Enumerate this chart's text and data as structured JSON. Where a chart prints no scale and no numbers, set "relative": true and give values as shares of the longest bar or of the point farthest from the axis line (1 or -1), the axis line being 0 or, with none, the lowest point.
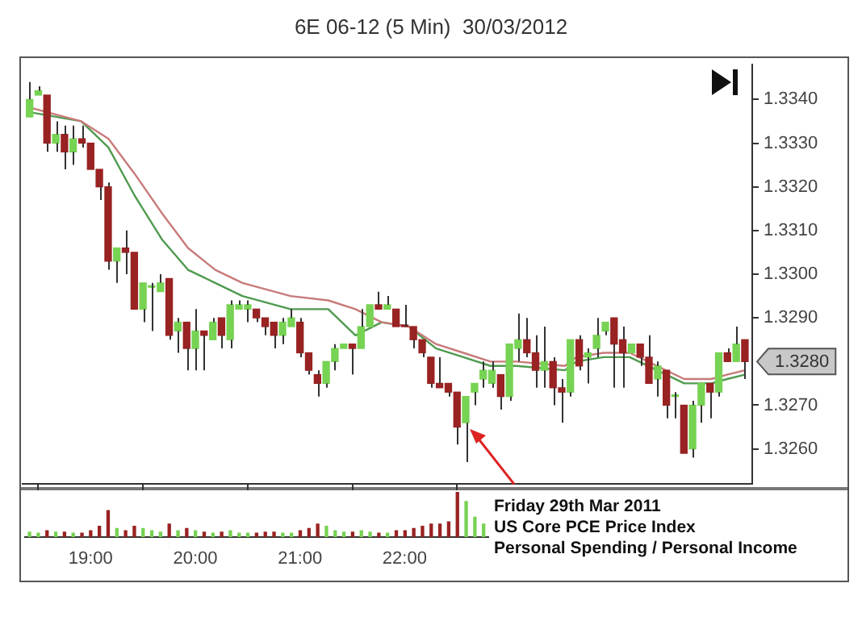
{
  "chart_data": [
    {
      "type": "candlestick",
      "title": "6E 06-12 (5 Min)  30/03/2012",
      "xticks": [
        {
          "value": 19,
          "label": "19:00"
        },
        {
          "value": 20,
          "label": "20:00"
        },
        {
          "value": 21,
          "label": "21:00"
        },
        {
          "value": 22,
          "label": "22:00"
        }
      ],
      "x": [
        18.417,
        18.5,
        18.583,
        18.667,
        18.75,
        18.833,
        18.917,
        19,
        19.083,
        19.167,
        19.25,
        19.333,
        19.417,
        19.5,
        19.583,
        19.667,
        19.75,
        19.833,
        19.917,
        20,
        20.083,
        20.167,
        20.25,
        20.333,
        20.417,
        20.5,
        20.583,
        20.667,
        20.75,
        20.833,
        20.917,
        21,
        21.083,
        21.167,
        21.25,
        21.333,
        21.417,
        21.5,
        21.583,
        21.667,
        21.75,
        21.833,
        21.917,
        22,
        22.083,
        22.167,
        22.25,
        22.333,
        22.417,
        22.5,
        22.583,
        22.667,
        22.75,
        22.833,
        22.917,
        23,
        23.083,
        23.167,
        23.25,
        23.333,
        23.417,
        23.5,
        23.583,
        23.667,
        23.75,
        23.833,
        23.917,
        24,
        24.083,
        24.167,
        24.25,
        24.333,
        24.417,
        24.5,
        24.583,
        24.667,
        24.75,
        24.833,
        24.917,
        25,
        25.083,
        25.167,
        25.25
      ],
      "ohlc": [
        [
          1.3336,
          1.3344,
          1.3336,
          1.334
        ],
        [
          1.3341,
          1.3343,
          1.3341,
          1.3342
        ],
        [
          1.3341,
          1.3341,
          1.3328,
          1.333
        ],
        [
          1.333,
          1.3335,
          1.3328,
          1.3332
        ],
        [
          1.3332,
          1.3334,
          1.3324,
          1.3328
        ],
        [
          1.3328,
          1.3334,
          1.3325,
          1.3331
        ],
        [
          1.3331,
          1.3334,
          1.3329,
          1.333
        ],
        [
          1.333,
          1.333,
          1.3324,
          1.3324
        ],
        [
          1.3324,
          1.3324,
          1.3317,
          1.332
        ],
        [
          1.332,
          1.3321,
          1.3301,
          1.3303
        ],
        [
          1.3303,
          1.3306,
          1.3298,
          1.3306
        ],
        [
          1.3306,
          1.331,
          1.33,
          1.3305
        ],
        [
          1.3305,
          1.3305,
          1.3292,
          1.3292
        ],
        [
          1.3292,
          1.3298,
          1.3289,
          1.3298
        ],
        [
          1.3297,
          1.3298,
          1.3287,
          1.3297
        ],
        [
          1.3296,
          1.33,
          1.3296,
          1.3298
        ],
        [
          1.3299,
          1.3299,
          1.3285,
          1.3286
        ],
        [
          1.3287,
          1.329,
          1.3282,
          1.3289
        ],
        [
          1.3289,
          1.3289,
          1.3278,
          1.3283
        ],
        [
          1.3283,
          1.3292,
          1.3278,
          1.3287
        ],
        [
          1.3287,
          1.3287,
          1.3278,
          1.3286
        ],
        [
          1.3285,
          1.329,
          1.3285,
          1.3289
        ],
        [
          1.329,
          1.329,
          1.3283,
          1.3286
        ],
        [
          1.3285,
          1.3294,
          1.3283,
          1.3293
        ],
        [
          1.3292,
          1.3294,
          1.3292,
          1.3293
        ],
        [
          1.3292,
          1.3294,
          1.3289,
          1.3293
        ],
        [
          1.3292,
          1.3292,
          1.3289,
          1.329
        ],
        [
          1.329,
          1.329,
          1.3286,
          1.3288
        ],
        [
          1.3289,
          1.3289,
          1.3283,
          1.3286
        ],
        [
          1.3286,
          1.329,
          1.3284,
          1.3289
        ],
        [
          1.3288,
          1.3292,
          1.3288,
          1.329
        ],
        [
          1.3289,
          1.329,
          1.3281,
          1.3282
        ],
        [
          1.3282,
          1.3282,
          1.3277,
          1.3278
        ],
        [
          1.3277,
          1.3278,
          1.3272,
          1.3275
        ],
        [
          1.3275,
          1.328,
          1.3274,
          1.328
        ],
        [
          1.328,
          1.3284,
          1.3278,
          1.3283
        ],
        [
          1.3283,
          1.3284,
          1.3283,
          1.3284
        ],
        [
          1.3284,
          1.3284,
          1.3277,
          1.3283
        ],
        [
          1.3283,
          1.3292,
          1.3283,
          1.3288
        ],
        [
          1.3288,
          1.3293,
          1.3288,
          1.3293
        ],
        [
          1.3293,
          1.3296,
          1.3292,
          1.3292
        ],
        [
          1.3292,
          1.3295,
          1.3292,
          1.3293
        ],
        [
          1.3292,
          1.3292,
          1.3288,
          1.3288
        ],
        [
          1.3288,
          1.3293,
          1.3288,
          1.3288
        ],
        [
          1.3288,
          1.3288,
          1.3283,
          1.3285
        ],
        [
          1.3285,
          1.3285,
          1.3281,
          1.3282
        ],
        [
          1.3281,
          1.3281,
          1.3274,
          1.3275
        ],
        [
          1.3275,
          1.3281,
          1.3274,
          1.3274
        ],
        [
          1.3275,
          1.3275,
          1.3272,
          1.3273
        ],
        [
          1.3273,
          1.3273,
          1.3261,
          1.3265
        ],
        [
          1.3266,
          1.3272,
          1.3257,
          1.3272
        ],
        [
          1.3273,
          1.3275,
          1.327,
          1.3275
        ],
        [
          1.3276,
          1.328,
          1.3274,
          1.3278
        ],
        [
          1.3275,
          1.328,
          1.3274,
          1.3278
        ],
        [
          1.3277,
          1.3277,
          1.3269,
          1.3272
        ],
        [
          1.3272,
          1.3284,
          1.3271,
          1.3284
        ],
        [
          1.3283,
          1.3291,
          1.328,
          1.3285
        ],
        [
          1.3285,
          1.329,
          1.3281,
          1.3282
        ],
        [
          1.3282,
          1.3286,
          1.3274,
          1.3278
        ],
        [
          1.3278,
          1.3288,
          1.3274,
          1.328
        ],
        [
          1.328,
          1.3281,
          1.327,
          1.3274
        ],
        [
          1.3274,
          1.3276,
          1.3266,
          1.3273
        ],
        [
          1.3273,
          1.3285,
          1.3272,
          1.3285
        ],
        [
          1.3285,
          1.3286,
          1.3278,
          1.3279
        ],
        [
          1.3281,
          1.3283,
          1.3275,
          1.3282
        ],
        [
          1.3283,
          1.329,
          1.3281,
          1.3286
        ],
        [
          1.3287,
          1.3289,
          1.3286,
          1.3289
        ],
        [
          1.329,
          1.329,
          1.3274,
          1.3284
        ],
        [
          1.3285,
          1.3288,
          1.3274,
          1.3282
        ],
        [
          1.3282,
          1.3284,
          1.3282,
          1.3284
        ],
        [
          1.3284,
          1.3284,
          1.3279,
          1.3281
        ],
        [
          1.3281,
          1.3286,
          1.3275,
          1.3275
        ],
        [
          1.3276,
          1.328,
          1.3272,
          1.3279
        ],
        [
          1.3278,
          1.3278,
          1.3267,
          1.327
        ],
        [
          1.3272,
          1.3273,
          1.3267,
          1.3272
        ],
        [
          1.327,
          1.327,
          1.3259,
          1.3259
        ],
        [
          1.326,
          1.3271,
          1.3258,
          1.327
        ],
        [
          1.327,
          1.3275,
          1.3266,
          1.3275
        ],
        [
          1.3275,
          1.3275,
          1.3267,
          1.3273
        ],
        [
          1.3273,
          1.3282,
          1.3272,
          1.3282
        ],
        [
          1.3282,
          1.3283,
          1.328,
          1.328
        ],
        [
          1.328,
          1.3288,
          1.328,
          1.3284
        ],
        [
          1.3285,
          1.3285,
          1.3276,
          1.328
        ]
      ],
      "colors": [
        "#77d353",
        "#77d353",
        "#992222",
        "#77d353",
        "#992222",
        "#77d353",
        "#992222",
        "#992222",
        "#992222",
        "#992222",
        "#77d353",
        "#992222",
        "#992222",
        "#77d353",
        "#77d353",
        "#77d353",
        "#992222",
        "#77d353",
        "#992222",
        "#77d353",
        "#992222",
        "#77d353",
        "#992222",
        "#77d353",
        "#77d353",
        "#77d353",
        "#992222",
        "#992222",
        "#992222",
        "#77d353",
        "#77d353",
        "#992222",
        "#992222",
        "#992222",
        "#77d353",
        "#77d353",
        "#77d353",
        "#992222",
        "#77d353",
        "#77d353",
        "#992222",
        "#77d353",
        "#992222",
        "#992222",
        "#992222",
        "#992222",
        "#992222",
        "#992222",
        "#992222",
        "#992222",
        "#77d353",
        "#77d353",
        "#77d353",
        "#77d353",
        "#992222",
        "#77d353",
        "#77d353",
        "#992222",
        "#992222",
        "#77d353",
        "#992222",
        "#992222",
        "#77d353",
        "#992222",
        "#77d353",
        "#77d353",
        "#77d353",
        "#992222",
        "#992222",
        "#77d353",
        "#992222",
        "#992222",
        "#77d353",
        "#992222",
        "#77d353",
        "#992222",
        "#77d353",
        "#77d353",
        "#992222",
        "#77d353",
        "#992222",
        "#77d353",
        "#992222"
      ],
      "series": [
        {
          "type": "line",
          "color": "#c87a7a",
          "x": [
            18.44,
            18.91,
            19.17,
            19.42,
            19.68,
            19.93,
            20.19,
            20.45,
            20.91,
            21.27,
            21.53,
            21.78,
            22.04,
            22.3,
            22.56,
            22.82,
            23.07,
            23.53,
            23.64,
            23.9,
            24.15,
            24.41,
            24.67,
            24.93,
            25.08,
            25.25
          ],
          "values": [
            1.3338,
            1.3335,
            1.3331,
            1.3323,
            1.3314,
            1.3306,
            1.3301,
            1.3298,
            1.3295,
            1.3294,
            1.3292,
            1.3289,
            1.3288,
            1.3284,
            1.3282,
            1.328,
            1.328,
            1.3279,
            1.3281,
            1.3282,
            1.3282,
            1.3279,
            1.3276,
            1.3276,
            1.3277,
            1.3278
          ]
        },
        {
          "type": "line",
          "color": "#4f9a4f",
          "x": [
            18.44,
            18.91,
            19.17,
            19.42,
            19.68,
            19.93,
            20.19,
            20.45,
            20.91,
            21.27,
            21.53,
            21.78,
            22.04,
            22.3,
            22.56,
            22.82,
            23.07,
            23.53,
            23.64,
            23.9,
            24.15,
            24.41,
            24.67,
            24.93,
            25.08,
            25.25
          ],
          "values": [
            1.3337,
            1.3335,
            1.3329,
            1.3318,
            1.3308,
            1.3301,
            1.3298,
            1.3295,
            1.3292,
            1.3292,
            1.3286,
            1.3289,
            1.3288,
            1.3283,
            1.3281,
            1.3279,
            1.3279,
            1.3278,
            1.328,
            1.3281,
            1.3281,
            1.3278,
            1.3275,
            1.3275,
            1.3276,
            1.3277
          ]
        }
      ],
      "xlim": [
        18.35,
        25.32
      ],
      "ylim": [
        1.3252,
        1.3348
      ],
      "yticks": [
        {
          "value": 1.326,
          "label": "1.3260"
        },
        {
          "value": 1.327,
          "label": "1.3270"
        },
        {
          "value": 1.329,
          "label": "1.3290"
        },
        {
          "value": 1.33,
          "label": "1.3300"
        },
        {
          "value": 1.331,
          "label": "1.3310"
        },
        {
          "value": 1.332,
          "label": "1.3320"
        },
        {
          "value": 1.333,
          "label": "1.3330"
        },
        {
          "value": 1.334,
          "label": "1.3340"
        }
      ],
      "annotations": [
        {
          "text": "Friday 29th Mar 2011\nUS Core PCE Price Index\nPersonal Spending / Personal Income",
          "x": 22.583,
          "y": 1.3265
        },
        "1.3280"
      ]
    },
    {
      "type": "bar",
      "relative": true,
      "categories": [
        null,
        null,
        null,
        null,
        null,
        null,
        null,
        null,
        null,
        null,
        null,
        null,
        null,
        null,
        null,
        null,
        null,
        null,
        null,
        null,
        null,
        null,
        null,
        null,
        null,
        null,
        null,
        null,
        null,
        null,
        null,
        null,
        null,
        null,
        null,
        null,
        null,
        null,
        null,
        null,
        null,
        null,
        null,
        null,
        null,
        null,
        null,
        null,
        null,
        null,
        null,
        null,
        null
      ],
      "values": [
        0.12,
        0.1,
        0.15,
        0.12,
        0.12,
        0.1,
        0.1,
        0.15,
        0.25,
        0.6,
        0.2,
        0.15,
        0.25,
        0.2,
        0.15,
        0.12,
        0.3,
        0.15,
        0.2,
        0.15,
        0.12,
        0.1,
        0.12,
        0.15,
        0.1,
        0.1,
        0.1,
        0.12,
        0.12,
        0.1,
        0.1,
        0.15,
        0.2,
        0.3,
        0.25,
        0.15,
        0.12,
        0.12,
        0.15,
        0.12,
        0.1,
        0.1,
        0.15,
        0.15,
        0.2,
        0.25,
        0.3,
        0.3,
        0.35,
        1,
        0.8,
        0.45,
        0.3
      ],
      "colors": [
        "#77d353",
        "#77d353",
        "#992222",
        "#77d353",
        "#992222",
        "#77d353",
        "#992222",
        "#992222",
        "#992222",
        "#992222",
        "#77d353",
        "#992222",
        "#992222",
        "#77d353",
        "#77d353",
        "#77d353",
        "#992222",
        "#77d353",
        "#992222",
        "#77d353",
        "#992222",
        "#77d353",
        "#992222",
        "#77d353",
        "#77d353",
        "#77d353",
        "#992222",
        "#992222",
        "#992222",
        "#77d353",
        "#77d353",
        "#992222",
        "#992222",
        "#992222",
        "#77d353",
        "#77d353",
        "#77d353",
        "#992222",
        "#77d353",
        "#77d353",
        "#992222",
        "#77d353",
        "#992222",
        "#992222",
        "#992222",
        "#992222",
        "#992222",
        "#992222",
        "#992222",
        "#992222",
        "#77d353",
        "#77d353",
        "#77d353"
      ]
    }
  ]
}
